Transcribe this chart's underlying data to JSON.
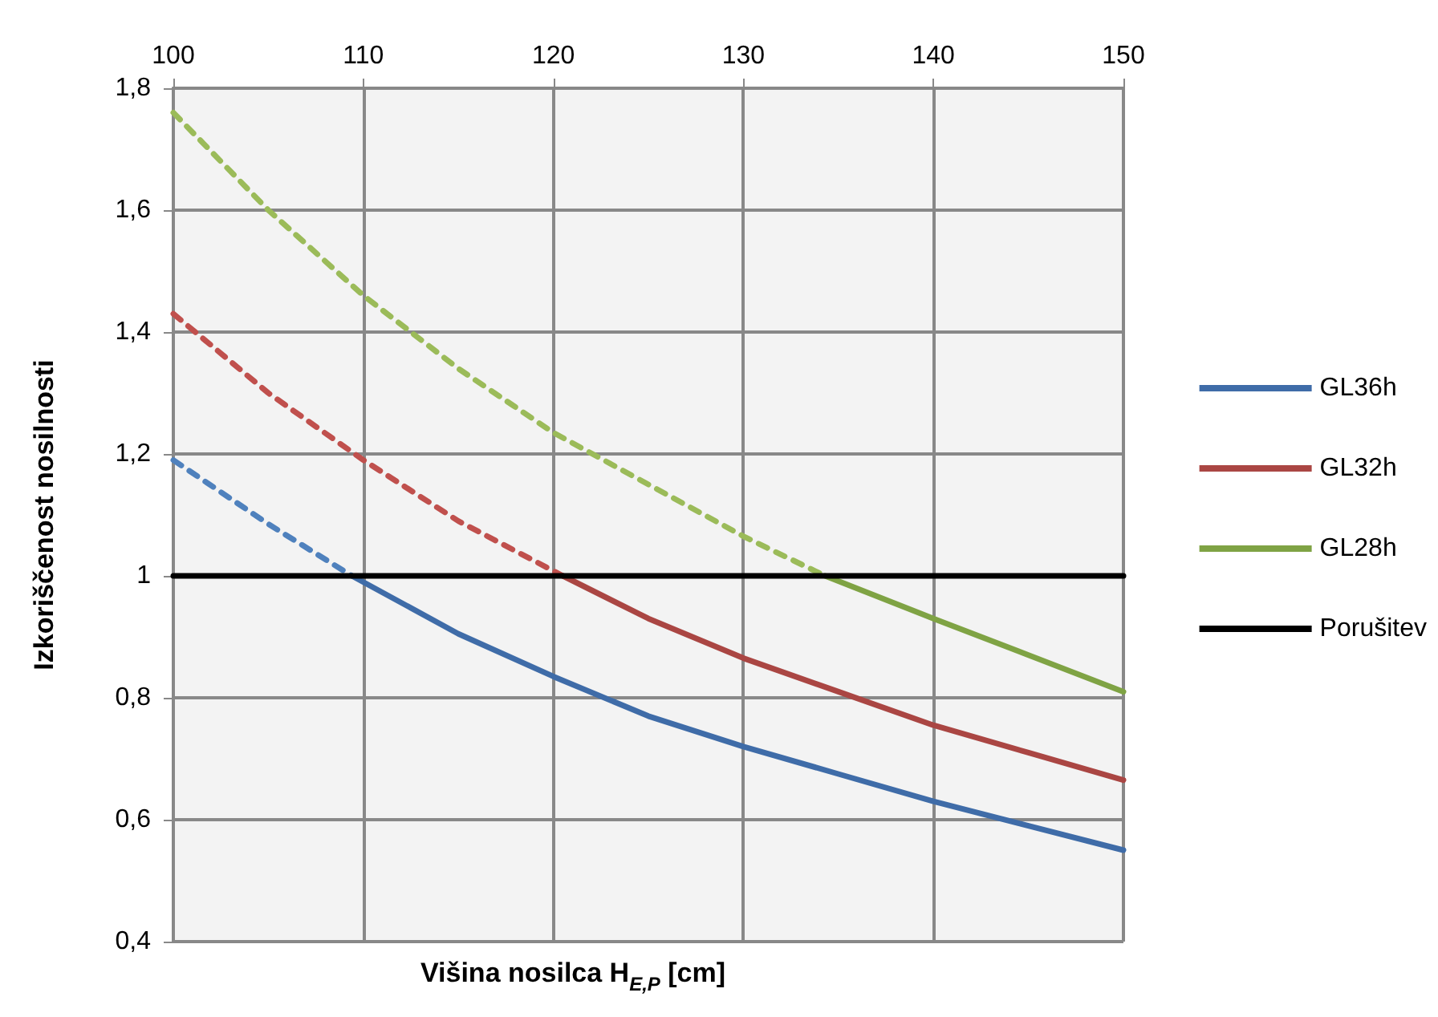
{
  "chart_data": {
    "type": "line",
    "xlabel": "Višina nosilca H$_{E,P}$ [cm]",
    "ylabel": "Izkoriščenost nosilnosti",
    "xlim": [
      100,
      150
    ],
    "xticks": [
      100,
      110,
      120,
      130,
      140,
      150
    ],
    "ylim": [
      0.4,
      1.8
    ],
    "yticks": [
      {
        "value": 0.4,
        "label": "0,4"
      },
      {
        "value": 0.6,
        "label": "0,6"
      },
      {
        "value": 0.8,
        "label": "0,8"
      },
      1,
      {
        "value": 1.2,
        "label": "1,2"
      },
      {
        "value": 1.4,
        "label": "1,4"
      },
      {
        "value": 1.6,
        "label": "1,6"
      },
      {
        "value": 1.8,
        "label": "1,8"
      }
    ],
    "grid": true,
    "legend": "right",
    "marker": "none",
    "series": [
      {
        "name": "GL36h",
        "color": "#3f6ca8",
        "line_style": "solid",
        "x": [
          109.4,
          115,
          120,
          125,
          130,
          135,
          140,
          145,
          150
        ],
        "values": [
          1.0,
          0.905,
          0.835,
          0.77,
          0.72,
          0.675,
          0.63,
          0.59,
          0.55
        ]
      },
      {
        "name": "GL32h",
        "color": "#aa4643",
        "line_style": "solid",
        "x": [
          120.5,
          125,
          130,
          135,
          140,
          145,
          150
        ],
        "values": [
          1.0,
          0.93,
          0.865,
          0.81,
          0.755,
          0.71,
          0.665
        ]
      },
      {
        "name": "GL28h",
        "color": "#7fa344",
        "line_style": "solid",
        "x": [
          134.3,
          140,
          145,
          150
        ],
        "values": [
          1.0,
          0.93,
          0.87,
          0.81
        ]
      },
      {
        "name": "Porušitev",
        "color": "#000000",
        "line_style": "solid",
        "x": [
          100,
          150
        ],
        "values": [
          1,
          1
        ]
      },
      {
        "color": "#4f81bd",
        "line_style": "dashed",
        "x": [
          100,
          105,
          109.4
        ],
        "values": [
          1.19,
          1.085,
          1.0
        ]
      },
      {
        "color": "#c0504d",
        "line_style": "dashed",
        "x": [
          100,
          105,
          110,
          115,
          120.5
        ],
        "values": [
          1.43,
          1.3,
          1.19,
          1.09,
          1.0
        ]
      },
      {
        "color": "#9bbb59",
        "line_style": "dashed",
        "x": [
          100,
          105,
          110,
          115,
          120,
          125,
          130,
          134.3
        ],
        "values": [
          1.76,
          1.6,
          1.46,
          1.34,
          1.235,
          1.15,
          1.065,
          1.0
        ]
      }
    ]
  }
}
